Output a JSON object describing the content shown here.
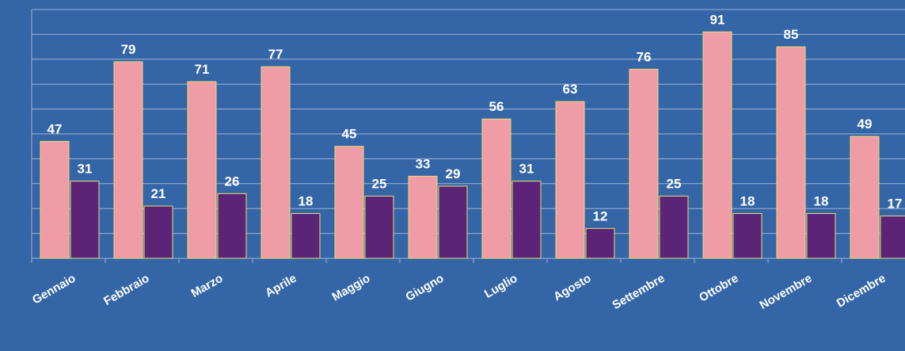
{
  "chart_data": {
    "type": "bar",
    "categories": [
      "Gennaio",
      "Febbraio",
      "Marzo",
      "Aprile",
      "Maggio",
      "Giugno",
      "Luglio",
      "Agosto",
      "Settembre",
      "Ottobre",
      "Novembre",
      "Dicembre"
    ],
    "series": [
      {
        "color": "#f09ca6",
        "values": [
          47,
          79,
          71,
          77,
          45,
          33,
          56,
          63,
          76,
          91,
          85,
          49
        ]
      },
      {
        "color": "#5b2477",
        "values": [
          31,
          21,
          26,
          18,
          25,
          29,
          31,
          12,
          25,
          18,
          18,
          17
        ]
      }
    ],
    "ylim": [
      0,
      100
    ],
    "yticks": [
      0,
      10,
      20,
      30,
      40,
      50,
      60,
      70,
      80,
      90,
      100
    ],
    "grid": true
  }
}
